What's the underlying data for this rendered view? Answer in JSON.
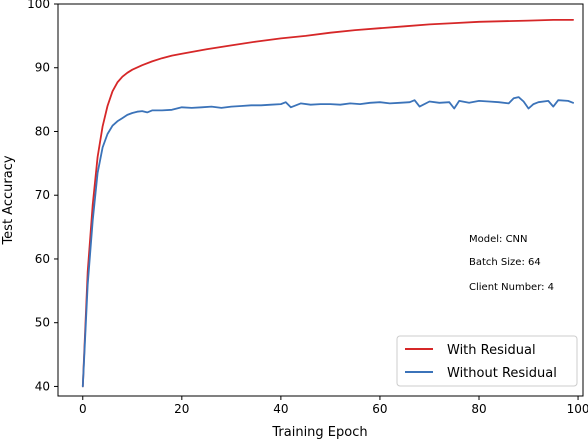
{
  "chart_data": {
    "type": "line",
    "title": "",
    "xlabel": "Training Epoch",
    "ylabel": "Test Accuracy",
    "xlim": [
      -5,
      101
    ],
    "ylim": [
      38.5,
      100
    ],
    "xticks": [
      0,
      20,
      40,
      60,
      80,
      100
    ],
    "yticks": [
      40,
      50,
      60,
      70,
      80,
      90,
      100
    ],
    "grid": false,
    "legend_position": "bottom-right",
    "annotations": [
      "Model: CNN",
      "Batch Size: 64",
      "Client Number: 4"
    ],
    "series": [
      {
        "name": "With Residual",
        "color": "#d62728",
        "x": [
          0,
          1,
          2,
          3,
          4,
          5,
          6,
          7,
          8,
          9,
          10,
          12,
          14,
          16,
          18,
          20,
          25,
          30,
          35,
          40,
          45,
          50,
          55,
          60,
          65,
          70,
          75,
          80,
          85,
          90,
          95,
          99
        ],
        "y": [
          40.0,
          58.0,
          68.5,
          76.0,
          80.8,
          84.0,
          86.3,
          87.7,
          88.6,
          89.2,
          89.7,
          90.4,
          91.0,
          91.5,
          91.9,
          92.2,
          92.9,
          93.5,
          94.1,
          94.6,
          95.0,
          95.5,
          95.9,
          96.2,
          96.5,
          96.8,
          97.0,
          97.2,
          97.3,
          97.4,
          97.5,
          97.5
        ]
      },
      {
        "name": "Without Residual",
        "color": "#3b73b9",
        "x": [
          0,
          1,
          2,
          3,
          4,
          5,
          6,
          7,
          8,
          9,
          10,
          11,
          12,
          13,
          14,
          16,
          18,
          20,
          22,
          24,
          26,
          28,
          30,
          32,
          34,
          36,
          38,
          40,
          41,
          42,
          44,
          46,
          48,
          50,
          52,
          54,
          56,
          58,
          60,
          62,
          64,
          66,
          67,
          68,
          70,
          72,
          74,
          75,
          76,
          78,
          80,
          82,
          84,
          86,
          87,
          88,
          89,
          90,
          91,
          92,
          94,
          95,
          96,
          98,
          99
        ],
        "y": [
          40.0,
          56.0,
          66.0,
          73.5,
          77.5,
          79.6,
          80.9,
          81.6,
          82.1,
          82.6,
          82.9,
          83.1,
          83.2,
          83.0,
          83.3,
          83.3,
          83.4,
          83.8,
          83.7,
          83.8,
          83.9,
          83.7,
          83.9,
          84.0,
          84.1,
          84.1,
          84.2,
          84.3,
          84.6,
          83.8,
          84.4,
          84.2,
          84.3,
          84.3,
          84.2,
          84.4,
          84.3,
          84.5,
          84.6,
          84.4,
          84.5,
          84.6,
          84.9,
          83.9,
          84.7,
          84.5,
          84.6,
          83.6,
          84.8,
          84.5,
          84.8,
          84.7,
          84.6,
          84.4,
          85.2,
          85.4,
          84.7,
          83.6,
          84.3,
          84.6,
          84.8,
          83.9,
          84.9,
          84.8,
          84.5
        ]
      }
    ]
  }
}
